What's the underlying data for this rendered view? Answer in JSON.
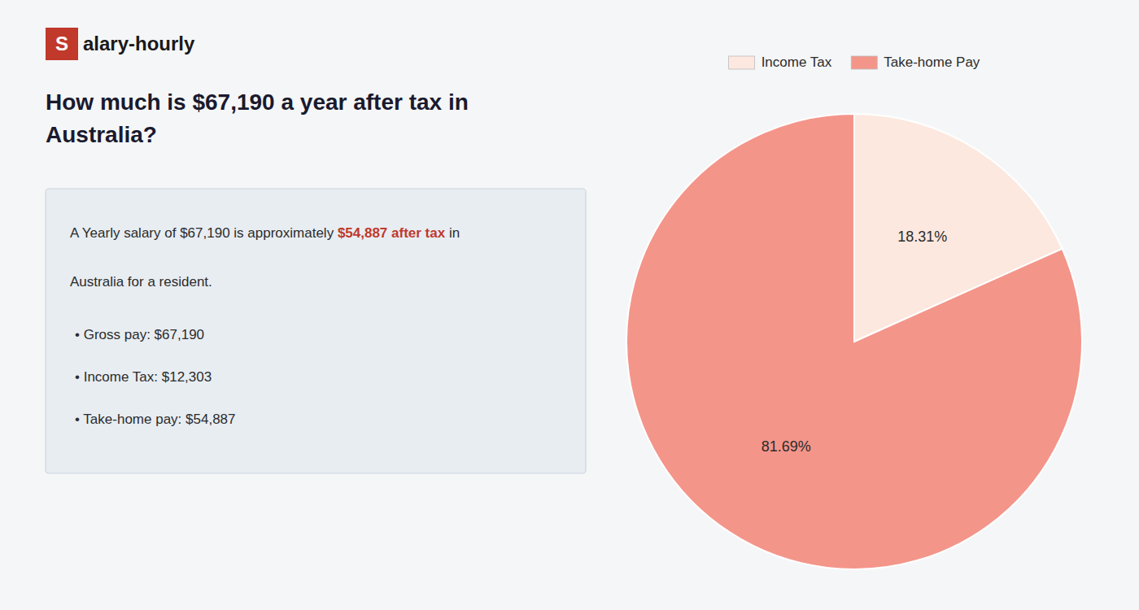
{
  "chart_data": {
    "type": "pie",
    "title": [
      "How much is $67,190 a year after tax in",
      "Australia?"
    ],
    "annotations": [
      "S",
      "alary-hourly",
      "A Yearly salary of $67,190 is approximately ",
      "$54,887 after tax",
      " in",
      "Australia for a resident.",
      "• Gross pay: $67,190",
      "• Income Tax: $12,303",
      "• Take-home pay: $54,887"
    ],
    "categories": [
      "Income Tax",
      "Take-home Pay"
    ],
    "values": [
      18.31,
      81.69
    ],
    "value_labels": [
      "18.31%",
      "81.69%"
    ],
    "colors": [
      "#fce8df",
      "#f4958a"
    ],
    "data_labels": true,
    "legend": "top"
  }
}
